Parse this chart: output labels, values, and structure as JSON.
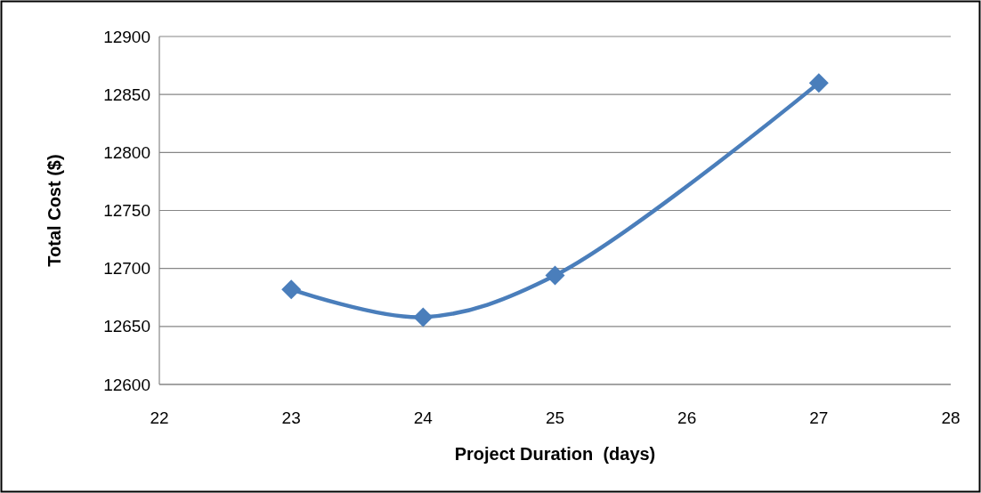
{
  "chart_data": {
    "type": "line",
    "xlabel": "Project Duration  (days)",
    "ylabel": "Total Cost ($)",
    "x": [
      23,
      24,
      25,
      27
    ],
    "series": [
      {
        "color": "#4a7ebb",
        "values": [
          12682,
          12658,
          12694,
          12860
        ]
      }
    ],
    "xlim": [
      22,
      28
    ],
    "xticks": [
      22,
      23,
      24,
      25,
      26,
      27,
      28
    ],
    "ylim": [
      12600,
      12900
    ],
    "yticks": [
      12600,
      12650,
      12700,
      12750,
      12800,
      12850,
      12900
    ],
    "grid": "y",
    "marker": "diamond",
    "line_style": "solid"
  }
}
